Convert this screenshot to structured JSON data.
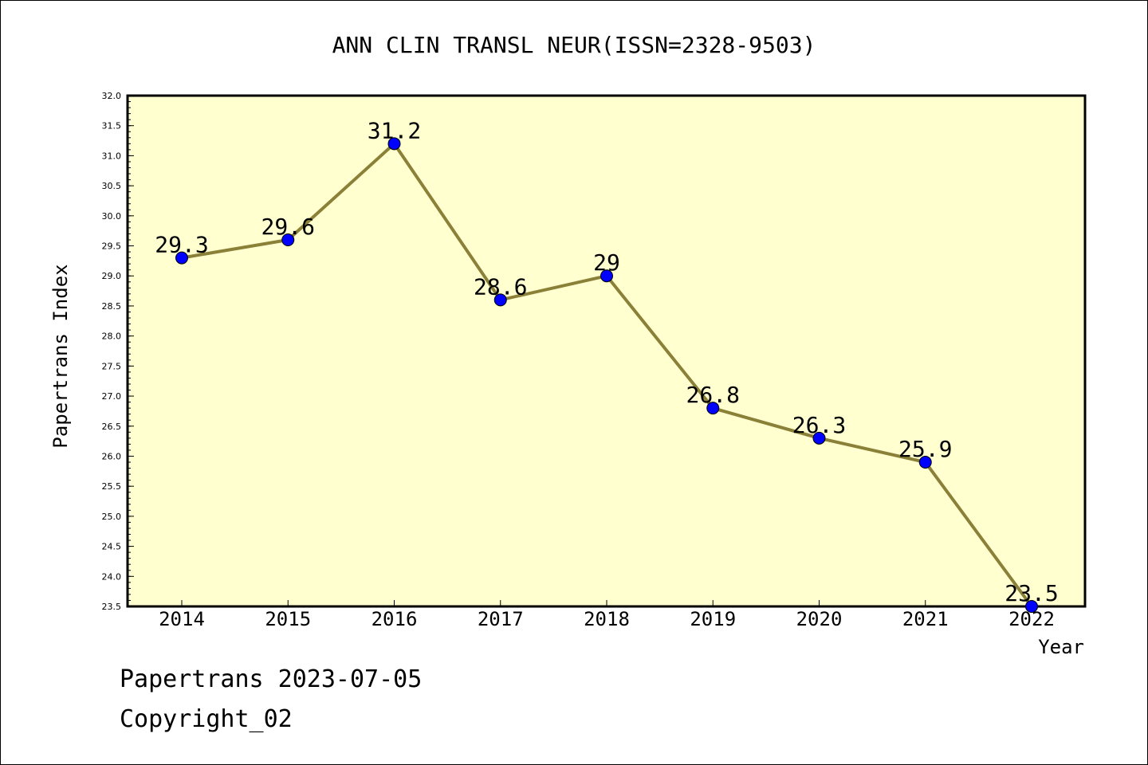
{
  "chart_data": {
    "type": "line",
    "title": "ANN CLIN TRANSL NEUR(ISSN=2328-9503)",
    "xlabel": "Year",
    "ylabel": "Papertrans Index",
    "categories": [
      "2014",
      "2015",
      "2016",
      "2017",
      "2018",
      "2019",
      "2020",
      "2021",
      "2022"
    ],
    "values": [
      29.3,
      29.6,
      31.2,
      28.6,
      29.0,
      26.8,
      26.3,
      25.9,
      23.5
    ],
    "data_labels": [
      "29.3",
      "29.6",
      "31.2",
      "28.6",
      "29",
      "26.8",
      "26.3",
      "25.9",
      "23.5"
    ],
    "ylim": [
      23.5,
      32.0
    ],
    "yticks": [
      "23.5",
      "24.0",
      "24.5",
      "25.0",
      "25.5",
      "26.0",
      "26.5",
      "27.0",
      "27.5",
      "28.0",
      "28.5",
      "29.0",
      "29.5",
      "30.0",
      "30.5",
      "31.0",
      "31.5",
      "32.0"
    ],
    "grid": false,
    "colors": {
      "plot_background": "#ffffd0",
      "line": "#8b8038",
      "marker": "#0000ff"
    }
  },
  "footer": {
    "line1": "Papertrans 2023-07-05",
    "line2": "Copyright_02"
  }
}
